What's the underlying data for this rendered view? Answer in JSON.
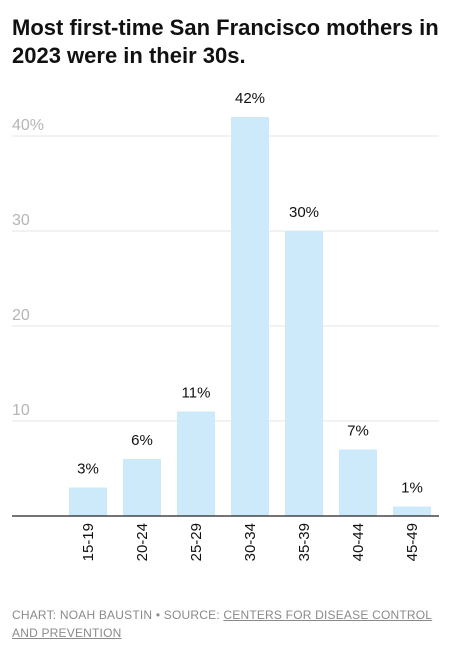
{
  "title": "Most first-time San Francisco mothers in 2023 were in their 30s.",
  "footer": {
    "credit": "CHART: NOAH BAUSTIN",
    "separator": "•",
    "source_label": "SOURCE:",
    "source_link": "CENTERS FOR DISEASE CONTROL AND PREVENTION"
  },
  "colors": {
    "bar": "#cdeafb",
    "grid": "#e4e4e4",
    "axis": "#222222",
    "tick_label": "#b5b5b5",
    "text": "#111111"
  },
  "chart_data": {
    "type": "bar",
    "categories": [
      "15-19",
      "20-24",
      "25-29",
      "30-34",
      "35-39",
      "40-44",
      "45-49"
    ],
    "values": [
      3,
      6,
      11,
      42,
      30,
      7,
      1
    ],
    "data_labels": [
      "3%",
      "6%",
      "11%",
      "42%",
      "30%",
      "7%",
      "1%"
    ],
    "yticks": [
      10,
      20,
      30,
      40
    ],
    "ytick_labels": [
      "10",
      "20",
      "30",
      "40%"
    ],
    "ylim": [
      0,
      42
    ],
    "grid": true,
    "xlabel": "",
    "ylabel": ""
  }
}
